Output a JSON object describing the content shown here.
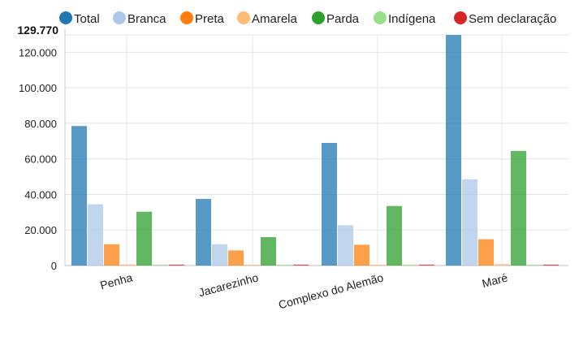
{
  "chart_data": {
    "type": "bar",
    "categories": [
      "Penha",
      "Jacarezinho",
      "Complexo do Alemão",
      "Maré"
    ],
    "series": [
      {
        "name": "Total",
        "color": "#1f77b4",
        "values": [
          78500,
          37500,
          69000,
          129770
        ]
      },
      {
        "name": "Branca",
        "color": "#aec7e8",
        "values": [
          34500,
          12000,
          22700,
          48500
        ]
      },
      {
        "name": "Preta",
        "color": "#ff7f0e",
        "values": [
          12000,
          8500,
          11700,
          14800
        ]
      },
      {
        "name": "Amarela",
        "color": "#ffbb78",
        "values": [
          700,
          300,
          400,
          900
        ]
      },
      {
        "name": "Parda",
        "color": "#2ca02c",
        "values": [
          30300,
          16000,
          33500,
          64500
        ]
      },
      {
        "name": "Indígena",
        "color": "#98df8a",
        "values": [
          100,
          50,
          80,
          150
        ]
      },
      {
        "name": "Sem declaração",
        "color": "#d62728",
        "values": [
          50,
          30,
          40,
          60
        ]
      }
    ],
    "y_ticks": [
      "0",
      "20.000",
      "40.000",
      "60.000",
      "80.000",
      "100.000",
      "120.000"
    ],
    "y_max_label": "129.770",
    "ylim": [
      0,
      129770
    ],
    "grid": true,
    "legend_position": "top",
    "bar_opacity": 0.75
  }
}
